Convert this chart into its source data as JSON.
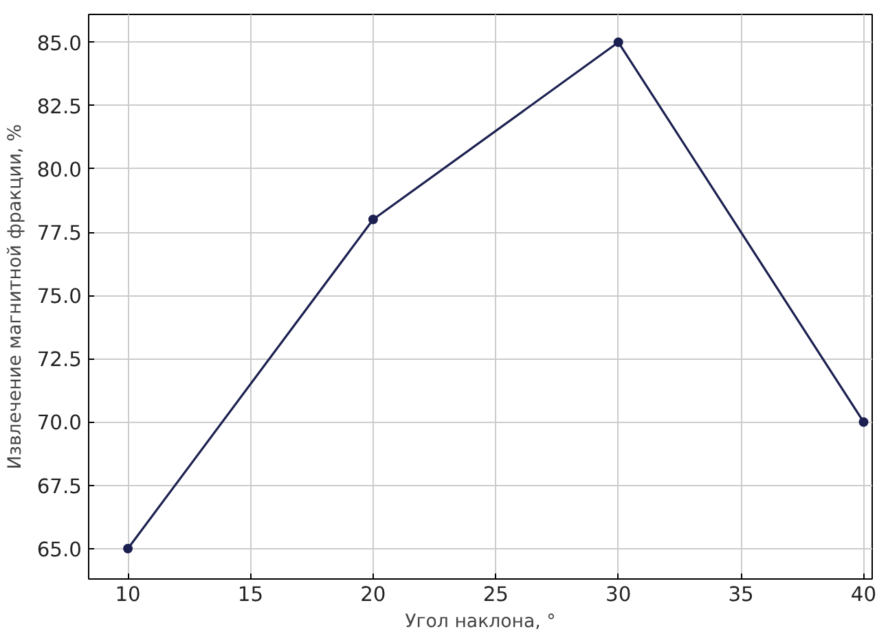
{
  "chart_data": {
    "type": "line",
    "xlabel": "Угол наклона, °",
    "ylabel": "Извлечение магнитной фракции, %",
    "x": [
      10,
      20,
      30,
      40
    ],
    "series": [
      {
        "color": "#1c2050",
        "values": [
          65,
          78,
          85,
          70
        ]
      }
    ],
    "xlim": [
      8.4,
      40.35
    ],
    "ylim": [
      63.8,
      86.1
    ],
    "xticks": [
      10,
      15,
      20,
      25,
      30,
      35,
      40
    ],
    "yticks": [
      {
        "value": 65,
        "label": "65.0"
      },
      {
        "value": 67.5,
        "label": "67.5"
      },
      {
        "value": 70,
        "label": "70.0"
      },
      {
        "value": 72.5,
        "label": "72.5"
      },
      {
        "value": 75,
        "label": "75.0"
      },
      {
        "value": 77.5,
        "label": "77.5"
      },
      {
        "value": 80,
        "label": "80.0"
      },
      {
        "value": 82.5,
        "label": "82.5"
      },
      {
        "value": 85,
        "label": "85.0"
      }
    ],
    "grid": true,
    "marker": "circle",
    "line_style": "solid"
  }
}
